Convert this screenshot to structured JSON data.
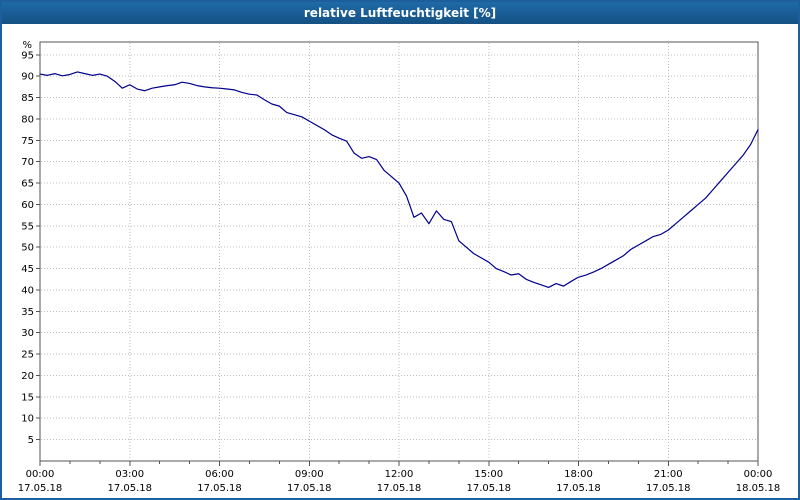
{
  "window": {
    "title": "relative Luftfeuchtigkeit [%]"
  },
  "colors": {
    "titlebar": "#1c5f9c",
    "window_border": "#1c5f9c",
    "plot_border": "#555555",
    "grid": "#bdbdbd",
    "line": "#00008b",
    "text": "#000000"
  },
  "chart_data": {
    "type": "line",
    "title": "relative Luftfeuchtigkeit [%]",
    "xlabel": "",
    "ylabel": "%",
    "ylim": [
      0,
      98
    ],
    "grid": true,
    "legend": "none",
    "y_ticks": [
      5,
      10,
      15,
      20,
      25,
      30,
      35,
      40,
      45,
      50,
      55,
      60,
      65,
      70,
      75,
      80,
      85,
      90,
      95
    ],
    "x_ticks": [
      {
        "hour": 0,
        "time": "00:00",
        "date": "17.05.18"
      },
      {
        "hour": 3,
        "time": "03:00",
        "date": "17.05.18"
      },
      {
        "hour": 6,
        "time": "06:00",
        "date": "17.05.18"
      },
      {
        "hour": 9,
        "time": "09:00",
        "date": "17.05.18"
      },
      {
        "hour": 12,
        "time": "12:00",
        "date": "17.05.18"
      },
      {
        "hour": 15,
        "time": "15:00",
        "date": "17.05.18"
      },
      {
        "hour": 18,
        "time": "18:00",
        "date": "17.05.18"
      },
      {
        "hour": 21,
        "time": "21:00",
        "date": "17.05.18"
      },
      {
        "hour": 24,
        "time": "00:00",
        "date": "18.05.18"
      }
    ],
    "minor_x_tick_every_hours": 1,
    "x_start_hour": 0,
    "x_step_hours": 0.25,
    "x_range_hours": [
      0,
      24
    ],
    "values": [
      90.5,
      90.2,
      90.6,
      90.1,
      90.4,
      91.0,
      90.6,
      90.2,
      90.5,
      90.0,
      88.8,
      87.2,
      88.0,
      87.0,
      86.6,
      87.2,
      87.5,
      87.8,
      88.0,
      88.6,
      88.3,
      87.8,
      87.5,
      87.3,
      87.2,
      87.0,
      86.8,
      86.2,
      85.8,
      85.6,
      84.5,
      83.5,
      83.0,
      81.5,
      81.0,
      80.5,
      79.5,
      78.5,
      77.5,
      76.3,
      75.5,
      74.8,
      72.0,
      70.8,
      71.2,
      70.5,
      68.0,
      66.5,
      65.0,
      62.0,
      57.0,
      58.0,
      55.5,
      58.5,
      56.5,
      56.0,
      51.5,
      50.0,
      48.5,
      47.5,
      46.5,
      45.0,
      44.3,
      43.5,
      43.8,
      42.5,
      41.8,
      41.2,
      40.6,
      41.5,
      40.9,
      42.0,
      43.0,
      43.5,
      44.2,
      45.0,
      46.0,
      47.0,
      48.0,
      49.5,
      50.5,
      51.5,
      52.5,
      53.0,
      54.0,
      55.5,
      57.0,
      58.5,
      60.0,
      61.5,
      63.5,
      65.5,
      67.5,
      69.5,
      71.5,
      74.0,
      77.5
    ]
  }
}
